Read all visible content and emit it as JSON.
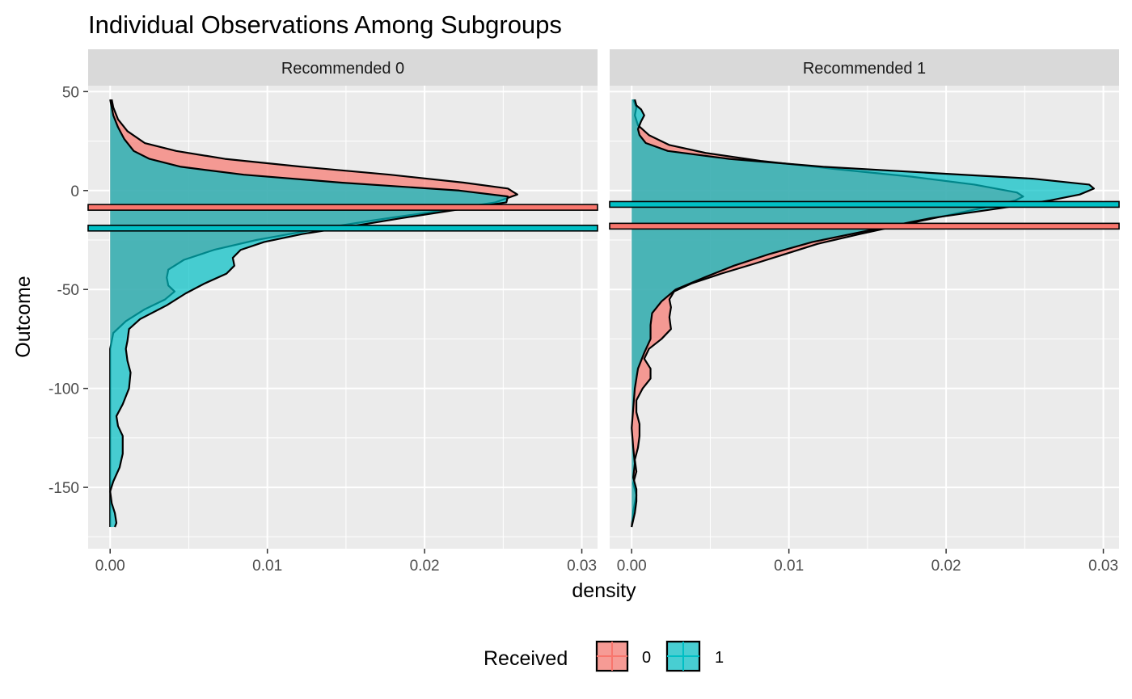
{
  "chart_data": {
    "type": "area",
    "title": "Individual Observations Among Subgroups",
    "xlabel": "density",
    "ylabel": "Outcome",
    "xlim": [
      -0.0014,
      0.031
    ],
    "ylim": [
      -181,
      53
    ],
    "x_ticks": [
      "0.00",
      "0.01",
      "0.02",
      "0.03"
    ],
    "x_tick_values": [
      0,
      0.01,
      0.02,
      0.03
    ],
    "y_ticks": [
      "50",
      "0",
      "-50",
      "-100",
      "-150"
    ],
    "y_tick_values": [
      50,
      0,
      -50,
      -100,
      -150
    ],
    "grid": true,
    "legend": {
      "title": "Received",
      "placement": "bottom",
      "entries": [
        {
          "label": "0",
          "color": "#F8766D"
        },
        {
          "label": "1",
          "color": "#00BFC4"
        }
      ]
    },
    "colors": {
      "group0": "#F8766D",
      "group1": "#00BFC4",
      "panel": "#EBEBEB",
      "strip": "#D9D9D9"
    },
    "panels": [
      {
        "strip": "Recommended 0",
        "means": [
          {
            "group": "0",
            "y": -8.5
          },
          {
            "group": "1",
            "y": -19.0
          }
        ],
        "series": [
          {
            "group": "0",
            "points": [
              [
                -170,
                0.0
              ],
              [
                -150,
                0.0
              ],
              [
                -125,
                0.0
              ],
              [
                -100,
                0.0
              ],
              [
                -80,
                0.0
              ],
              [
                -72,
                0.0002
              ],
              [
                -66,
                0.001
              ],
              [
                -60,
                0.0022
              ],
              [
                -55,
                0.0035
              ],
              [
                -51,
                0.0041
              ],
              [
                -48,
                0.0037
              ],
              [
                -44,
                0.0036
              ],
              [
                -40,
                0.0037
              ],
              [
                -35,
                0.0047
              ],
              [
                -30,
                0.0066
              ],
              [
                -25,
                0.0093
              ],
              [
                -20,
                0.0128
              ],
              [
                -15,
                0.0168
              ],
              [
                -10,
                0.0212
              ],
              [
                -6,
                0.0245
              ],
              [
                -2,
                0.0259
              ],
              [
                1,
                0.0253
              ],
              [
                4,
                0.0225
              ],
              [
                8,
                0.0178
              ],
              [
                12,
                0.0122
              ],
              [
                16,
                0.0073
              ],
              [
                20,
                0.0042
              ],
              [
                24,
                0.0022
              ],
              [
                30,
                0.0011
              ],
              [
                36,
                0.0005
              ],
              [
                42,
                0.0002
              ],
              [
                46,
                0.0001
              ]
            ]
          },
          {
            "group": "1",
            "points": [
              [
                -170,
                0.0003
              ],
              [
                -168,
                0.0004
              ],
              [
                -163,
                0.0003
              ],
              [
                -158,
                0.0001
              ],
              [
                -152,
                0.0
              ],
              [
                -147,
                0.0002
              ],
              [
                -140,
                0.0006
              ],
              [
                -133,
                0.0008
              ],
              [
                -124,
                0.0008
              ],
              [
                -119,
                0.0005
              ],
              [
                -114,
                0.0004
              ],
              [
                -108,
                0.0008
              ],
              [
                -100,
                0.0012
              ],
              [
                -92,
                0.0013
              ],
              [
                -86,
                0.0011
              ],
              [
                -80,
                0.001
              ],
              [
                -76,
                0.0011
              ],
              [
                -70,
                0.0012
              ],
              [
                -65,
                0.0019
              ],
              [
                -58,
                0.0036
              ],
              [
                -52,
                0.0048
              ],
              [
                -47,
                0.006
              ],
              [
                -42,
                0.0074
              ],
              [
                -38,
                0.0079
              ],
              [
                -34,
                0.0078
              ],
              [
                -30,
                0.0083
              ],
              [
                -26,
                0.0098
              ],
              [
                -22,
                0.0122
              ],
              [
                -18,
                0.0154
              ],
              [
                -14,
                0.0185
              ],
              [
                -10,
                0.0218
              ],
              [
                -6,
                0.0252
              ],
              [
                -3,
                0.0253
              ],
              [
                0,
                0.0222
              ],
              [
                4,
                0.0147
              ],
              [
                8,
                0.0085
              ],
              [
                12,
                0.0045
              ],
              [
                16,
                0.0025
              ],
              [
                20,
                0.0015
              ],
              [
                26,
                0.0009
              ],
              [
                32,
                0.0005
              ],
              [
                38,
                0.0002
              ],
              [
                42,
                0.0001
              ],
              [
                46,
                0.0
              ]
            ]
          }
        ]
      },
      {
        "strip": "Recommended 1",
        "means": [
          {
            "group": "0",
            "y": -18.0
          },
          {
            "group": "1",
            "y": -7.0
          }
        ],
        "series": [
          {
            "group": "0",
            "points": [
              [
                -170,
                0.0
              ],
              [
                -162,
                0.0001
              ],
              [
                -154,
                0.0003
              ],
              [
                -148,
                0.0001
              ],
              [
                -142,
                0.0003
              ],
              [
                -136,
                0.0002
              ],
              [
                -130,
                0.0004
              ],
              [
                -124,
                0.0005
              ],
              [
                -118,
                0.0005
              ],
              [
                -112,
                0.0003
              ],
              [
                -106,
                0.0003
              ],
              [
                -100,
                0.0007
              ],
              [
                -95,
                0.0012
              ],
              [
                -90,
                0.0012
              ],
              [
                -85,
                0.0008
              ],
              [
                -80,
                0.0011
              ],
              [
                -75,
                0.0019
              ],
              [
                -70,
                0.0025
              ],
              [
                -64,
                0.0024
              ],
              [
                -59,
                0.0025
              ],
              [
                -55,
                0.0024
              ],
              [
                -51,
                0.0027
              ],
              [
                -47,
                0.0038
              ],
              [
                -42,
                0.0057
              ],
              [
                -37,
                0.0078
              ],
              [
                -32,
                0.0098
              ],
              [
                -27,
                0.0118
              ],
              [
                -22,
                0.0145
              ],
              [
                -17,
                0.0174
              ],
              [
                -12,
                0.0204
              ],
              [
                -8,
                0.0228
              ],
              [
                -5,
                0.0244
              ],
              [
                -3,
                0.0249
              ],
              [
                -1,
                0.0245
              ],
              [
                3,
                0.0218
              ],
              [
                7,
                0.0178
              ],
              [
                11,
                0.0128
              ],
              [
                15,
                0.0082
              ],
              [
                19,
                0.0047
              ],
              [
                23,
                0.0024
              ],
              [
                28,
                0.0011
              ],
              [
                33,
                0.0004
              ],
              [
                38,
                0.0002
              ],
              [
                42,
                0.0003
              ],
              [
                46,
                0.0001
              ]
            ]
          },
          {
            "group": "1",
            "points": [
              [
                -170,
                0.0
              ],
              [
                -163,
                0.0002
              ],
              [
                -157,
                0.0003
              ],
              [
                -151,
                0.0003
              ],
              [
                -145,
                0.0001
              ],
              [
                -138,
                0.0002
              ],
              [
                -130,
                0.0001
              ],
              [
                -120,
                0.0
              ],
              [
                -110,
                0.0001
              ],
              [
                -100,
                0.0002
              ],
              [
                -90,
                0.0004
              ],
              [
                -82,
                0.0008
              ],
              [
                -75,
                0.0012
              ],
              [
                -68,
                0.0012
              ],
              [
                -62,
                0.0013
              ],
              [
                -56,
                0.0019
              ],
              [
                -50,
                0.0028
              ],
              [
                -44,
                0.0046
              ],
              [
                -38,
                0.0065
              ],
              [
                -32,
                0.0088
              ],
              [
                -26,
                0.0115
              ],
              [
                -20,
                0.0152
              ],
              [
                -14,
                0.019
              ],
              [
                -9,
                0.0234
              ],
              [
                -5,
                0.0266
              ],
              [
                -2,
                0.0285
              ],
              [
                1,
                0.0294
              ],
              [
                3,
                0.0291
              ],
              [
                6,
                0.0255
              ],
              [
                9,
                0.0188
              ],
              [
                12,
                0.0122
              ],
              [
                16,
                0.0062
              ],
              [
                20,
                0.0023
              ],
              [
                24,
                0.0009
              ],
              [
                28,
                0.0005
              ],
              [
                31,
                0.0004
              ],
              [
                35,
                0.0006
              ],
              [
                38,
                0.0008
              ],
              [
                41,
                0.0006
              ],
              [
                43,
                0.0003
              ],
              [
                46,
                0.0002
              ]
            ]
          }
        ]
      }
    ]
  }
}
